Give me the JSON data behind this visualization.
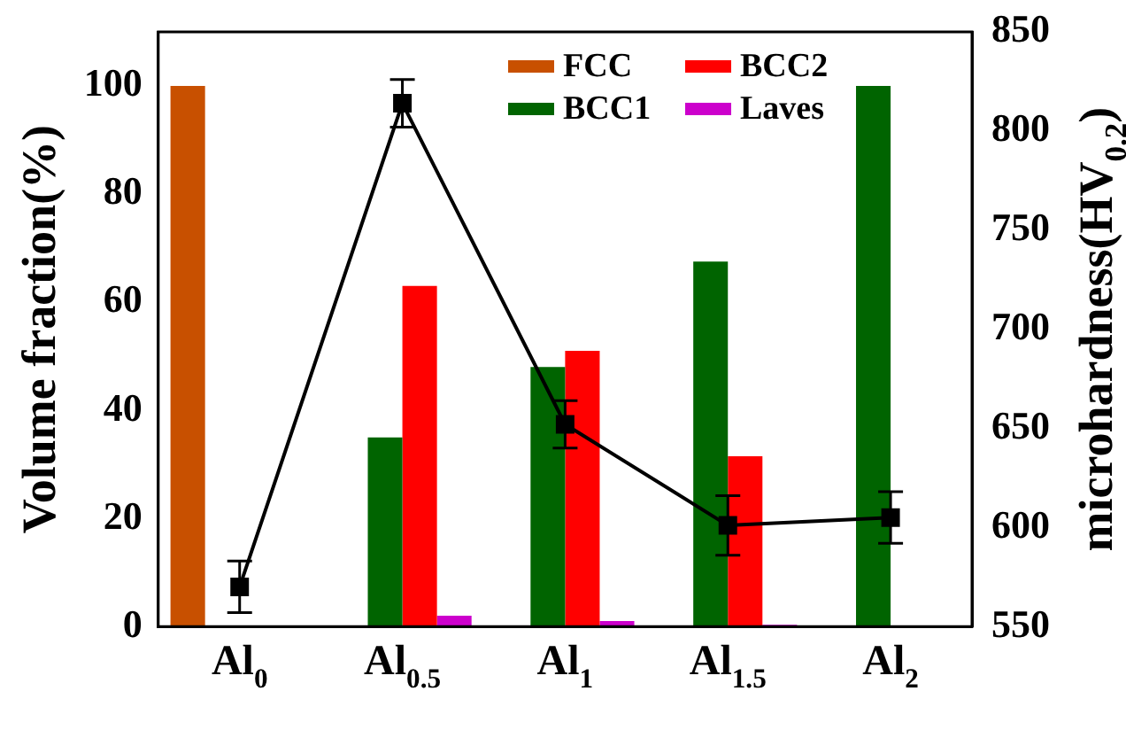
{
  "chart_data": {
    "type": "bar",
    "categories": [
      "Al$_{0}$",
      "Al$_{0.5}$",
      "Al$_{1}$",
      "Al$_{1.5}$",
      "Al$_{2}$"
    ],
    "series": [
      {
        "name": "FCC",
        "color": "#c85000",
        "values": [
          100,
          null,
          null,
          null,
          null
        ]
      },
      {
        "name": "BCC1",
        "color": "#006400",
        "values": [
          null,
          35,
          48,
          67.5,
          100
        ]
      },
      {
        "name": "BCC2",
        "color": "#ff0000",
        "values": [
          null,
          63,
          51,
          31.5,
          null
        ]
      },
      {
        "name": "Laves",
        "color": "#cc00cc",
        "values": [
          null,
          2,
          1,
          0.3,
          null
        ]
      },
      {
        "type": "line",
        "axis": "y2",
        "color": "#000000",
        "values": [
          570,
          814,
          652,
          601,
          605
        ],
        "errors": [
          13,
          12,
          12,
          15,
          13
        ]
      }
    ],
    "ylabel": "Volume fraction(%)",
    "y2label": "microhardness(HV$_{0.2}$)",
    "ylim": [
      0,
      110
    ],
    "yticks": [
      0,
      20,
      40,
      60,
      80,
      100
    ],
    "y2lim": [
      550,
      850
    ],
    "y2ticks": [
      550,
      600,
      650,
      700,
      750,
      800,
      850
    ],
    "marker": "square",
    "line_style": "solid",
    "grid": false,
    "legend": "top right"
  }
}
